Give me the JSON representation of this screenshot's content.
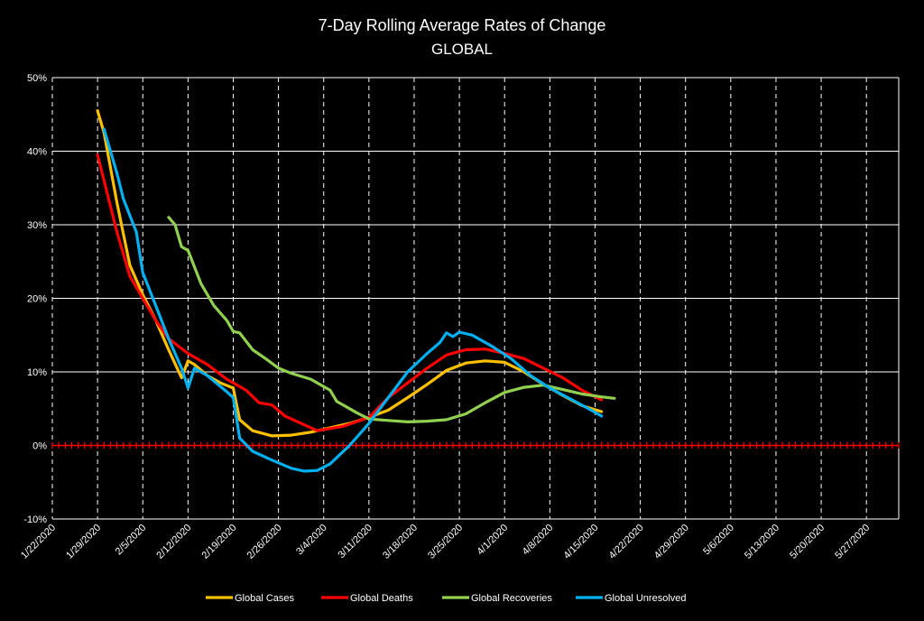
{
  "chart_data": {
    "type": "line",
    "title": "7-Day Rolling Average Rates of Change",
    "subtitle": "GLOBAL",
    "xlabel": "",
    "ylabel": "",
    "y_ticks": [
      "-10%",
      "0%",
      "10%",
      "20%",
      "30%",
      "40%",
      "50%"
    ],
    "ylim": [
      -10,
      50
    ],
    "x_ticks": [
      "1/22/2020",
      "1/29/2020",
      "2/5/2020",
      "2/12/2020",
      "2/19/2020",
      "2/26/2020",
      "3/4/2020",
      "3/11/2020",
      "3/18/2020",
      "3/25/2020",
      "4/1/2020",
      "4/8/2020",
      "4/15/2020",
      "4/22/2020",
      "4/29/2020",
      "5/6/2020",
      "5/13/2020",
      "5/20/2020",
      "5/27/2020"
    ],
    "xlim": [
      "1/22/2020",
      "6/1/2020"
    ],
    "grid": {
      "horizontal": "solid",
      "vertical": "dashed"
    },
    "legend_position": "bottom",
    "zero_line_color": "#ff0000",
    "series": [
      {
        "name": "Global Cases",
        "color": "#ffc000",
        "points": [
          [
            "1/29/2020",
            45.5
          ],
          [
            "1/30/2020",
            42.5
          ],
          [
            "2/1/2020",
            33.0
          ],
          [
            "2/3/2020",
            24.5
          ],
          [
            "2/5/2020",
            20.5
          ],
          [
            "2/7/2020",
            17.0
          ],
          [
            "2/9/2020",
            13.0
          ],
          [
            "2/11/2020",
            9.2
          ],
          [
            "2/12/2020",
            11.5
          ],
          [
            "2/13/2020",
            11.0
          ],
          [
            "2/15/2020",
            9.5
          ],
          [
            "2/17/2020",
            8.5
          ],
          [
            "2/19/2020",
            7.8
          ],
          [
            "2/20/2020",
            3.5
          ],
          [
            "2/22/2020",
            2.0
          ],
          [
            "2/25/2020",
            1.3
          ],
          [
            "2/28/2020",
            1.4
          ],
          [
            "3/2/2020",
            1.8
          ],
          [
            "3/5/2020",
            2.4
          ],
          [
            "3/8/2020",
            3.0
          ],
          [
            "3/11/2020",
            3.8
          ],
          [
            "3/14/2020",
            4.8
          ],
          [
            "3/17/2020",
            6.5
          ],
          [
            "3/20/2020",
            8.3
          ],
          [
            "3/23/2020",
            10.2
          ],
          [
            "3/26/2020",
            11.2
          ],
          [
            "3/29/2020",
            11.5
          ],
          [
            "4/1/2020",
            11.3
          ],
          [
            "4/4/2020",
            10.0
          ],
          [
            "4/7/2020",
            8.3
          ],
          [
            "4/10/2020",
            6.8
          ],
          [
            "4/13/2020",
            5.4
          ],
          [
            "4/16/2020",
            4.6
          ]
        ]
      },
      {
        "name": "Global Deaths",
        "color": "#ff0000",
        "points": [
          [
            "1/29/2020",
            39.5
          ],
          [
            "1/30/2020",
            36.0
          ],
          [
            "2/1/2020",
            29.0
          ],
          [
            "2/3/2020",
            23.0
          ],
          [
            "2/5/2020",
            20.0
          ],
          [
            "2/7/2020",
            17.0
          ],
          [
            "2/9/2020",
            14.5
          ],
          [
            "2/12/2020",
            12.5
          ],
          [
            "2/15/2020",
            11.0
          ],
          [
            "2/18/2020",
            9.0
          ],
          [
            "2/21/2020",
            7.5
          ],
          [
            "2/23/2020",
            5.8
          ],
          [
            "2/25/2020",
            5.5
          ],
          [
            "2/27/2020",
            4.0
          ],
          [
            "3/1/2020",
            2.8
          ],
          [
            "3/3/2020",
            2.0
          ],
          [
            "3/7/2020",
            2.6
          ],
          [
            "3/11/2020",
            3.8
          ],
          [
            "3/14/2020",
            6.5
          ],
          [
            "3/17/2020",
            8.5
          ],
          [
            "3/20/2020",
            10.5
          ],
          [
            "3/23/2020",
            12.3
          ],
          [
            "3/26/2020",
            13.0
          ],
          [
            "3/29/2020",
            13.1
          ],
          [
            "4/1/2020",
            12.5
          ],
          [
            "4/4/2020",
            11.8
          ],
          [
            "4/7/2020",
            10.5
          ],
          [
            "4/10/2020",
            9.2
          ],
          [
            "4/13/2020",
            7.5
          ],
          [
            "4/16/2020",
            6.2
          ]
        ]
      },
      {
        "name": "Global Recoveries",
        "color": "#92d050",
        "points": [
          [
            "2/9/2020",
            31.0
          ],
          [
            "2/10/2020",
            30.0
          ],
          [
            "2/11/2020",
            27.0
          ],
          [
            "2/12/2020",
            26.5
          ],
          [
            "2/14/2020",
            22.0
          ],
          [
            "2/16/2020",
            19.0
          ],
          [
            "2/18/2020",
            17.0
          ],
          [
            "2/19/2020",
            15.5
          ],
          [
            "2/20/2020",
            15.3
          ],
          [
            "2/22/2020",
            13.0
          ],
          [
            "2/24/2020",
            11.8
          ],
          [
            "2/26/2020",
            10.5
          ],
          [
            "2/28/2020",
            9.8
          ],
          [
            "3/2/2020",
            9.0
          ],
          [
            "3/5/2020",
            7.5
          ],
          [
            "3/6/2020",
            6.0
          ],
          [
            "3/9/2020",
            4.5
          ],
          [
            "3/11/2020",
            3.6
          ],
          [
            "3/14/2020",
            3.4
          ],
          [
            "3/17/2020",
            3.2
          ],
          [
            "3/20/2020",
            3.3
          ],
          [
            "3/23/2020",
            3.5
          ],
          [
            "3/26/2020",
            4.3
          ],
          [
            "3/29/2020",
            5.8
          ],
          [
            "4/1/2020",
            7.2
          ],
          [
            "4/4/2020",
            7.9
          ],
          [
            "4/7/2020",
            8.2
          ],
          [
            "4/10/2020",
            7.6
          ],
          [
            "4/13/2020",
            7.0
          ],
          [
            "4/16/2020",
            6.6
          ],
          [
            "4/18/2020",
            6.4
          ]
        ]
      },
      {
        "name": "Global Unresolved",
        "color": "#00b0f0",
        "points": [
          [
            "1/30/2020",
            43.0
          ],
          [
            "2/1/2020",
            37.0
          ],
          [
            "2/2/2020",
            33.5
          ],
          [
            "2/4/2020",
            29.0
          ],
          [
            "2/5/2020",
            23.5
          ],
          [
            "2/7/2020",
            19.0
          ],
          [
            "2/9/2020",
            14.5
          ],
          [
            "2/11/2020",
            10.5
          ],
          [
            "2/12/2020",
            7.8
          ],
          [
            "2/13/2020",
            10.5
          ],
          [
            "2/15/2020",
            9.5
          ],
          [
            "2/18/2020",
            7.3
          ],
          [
            "2/19/2020",
            6.5
          ],
          [
            "2/20/2020",
            1.0
          ],
          [
            "2/22/2020",
            -0.8
          ],
          [
            "2/25/2020",
            -2.0
          ],
          [
            "2/28/2020",
            -3.1
          ],
          [
            "3/1/2020",
            -3.5
          ],
          [
            "3/3/2020",
            -3.4
          ],
          [
            "3/5/2020",
            -2.5
          ],
          [
            "3/8/2020",
            0.0
          ],
          [
            "3/11/2020",
            3.0
          ],
          [
            "3/14/2020",
            6.5
          ],
          [
            "3/17/2020",
            10.0
          ],
          [
            "3/20/2020",
            12.5
          ],
          [
            "3/22/2020",
            14.0
          ],
          [
            "3/23/2020",
            15.3
          ],
          [
            "3/24/2020",
            14.8
          ],
          [
            "3/25/2020",
            15.4
          ],
          [
            "3/27/2020",
            15.0
          ],
          [
            "3/30/2020",
            13.5
          ],
          [
            "4/2/2020",
            11.8
          ],
          [
            "4/5/2020",
            9.5
          ],
          [
            "4/8/2020",
            7.8
          ],
          [
            "4/11/2020",
            6.4
          ],
          [
            "4/14/2020",
            5.0
          ],
          [
            "4/16/2020",
            4.0
          ]
        ]
      }
    ]
  }
}
